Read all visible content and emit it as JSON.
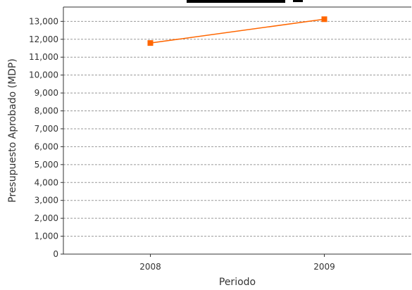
{
  "chart_data": {
    "type": "line",
    "title": "",
    "xlabel": "Periodo",
    "ylabel": "Presupuesto Aprobado (MDP)",
    "categories": [
      "2008",
      "2009"
    ],
    "series": [
      {
        "values": [
          11790,
          13120
        ],
        "color": "#ff6600"
      }
    ],
    "ylim": [
      0,
      13800
    ],
    "yticks": [
      0,
      1000,
      2000,
      3000,
      4000,
      5000,
      6000,
      7000,
      8000,
      9000,
      10000,
      11000,
      12000,
      13000
    ],
    "ytick_labels": [
      "0",
      "1,000",
      "2,000",
      "3,000",
      "4,000",
      "5,000",
      "6,000",
      "7,000",
      "8,000",
      "9,000",
      "10,000",
      "11,000",
      "12,000",
      "13,000"
    ],
    "grid": true,
    "legend": "none"
  }
}
